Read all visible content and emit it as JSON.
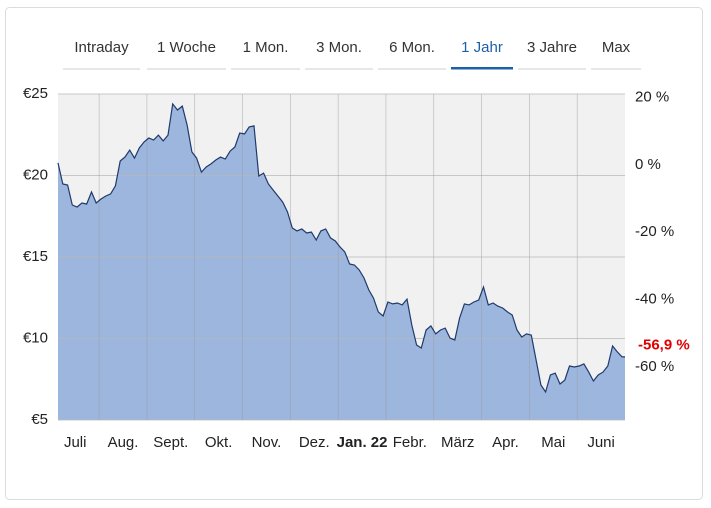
{
  "tabs": {
    "items": [
      "Intraday",
      "1 Woche",
      "1 Mon.",
      "3 Mon.",
      "6 Mon.",
      "1 Jahr",
      "3 Jahre",
      "Max"
    ],
    "active": 5
  },
  "chart_data": {
    "type": "area",
    "color": "#1f3a6b",
    "fill_color": "#9db6de",
    "grid": true,
    "xlim": [
      0.14,
      12.0
    ],
    "ylim": [
      5,
      25
    ],
    "y2lim": [
      -75.8,
      21.1
    ],
    "xgrid": [
      1,
      2,
      3,
      4,
      5,
      6,
      7,
      8,
      9,
      10,
      11
    ],
    "xticks": [
      {
        "value": 0.5,
        "label": "Juli"
      },
      {
        "value": 1.5,
        "label": "Aug."
      },
      {
        "value": 2.5,
        "label": "Sept."
      },
      {
        "value": 3.5,
        "label": "Okt."
      },
      {
        "value": 4.5,
        "label": "Nov."
      },
      {
        "value": 5.5,
        "label": "Dez."
      },
      {
        "value": 6.5,
        "label": "Jan. 22"
      },
      {
        "value": 7.5,
        "label": "Febr."
      },
      {
        "value": 8.5,
        "label": "März"
      },
      {
        "value": 9.5,
        "label": "Apr."
      },
      {
        "value": 10.5,
        "label": "Mai"
      },
      {
        "value": 11.5,
        "label": "Juni"
      }
    ],
    "emphasized_xtick": 6,
    "yticks": [
      {
        "value": 25,
        "label": "€25"
      },
      {
        "value": 20,
        "label": "€20"
      },
      {
        "value": 15,
        "label": "€15"
      },
      {
        "value": 10,
        "label": "€10"
      },
      {
        "value": 5,
        "label": "€5"
      }
    ],
    "y2ticks": [
      {
        "value": 20,
        "label": "20 %"
      },
      {
        "value": 0,
        "label": "0 %"
      },
      {
        "value": -20,
        "label": "-20 %"
      },
      {
        "value": -40,
        "label": "-40 %"
      },
      {
        "value": -60,
        "label": "-60 %"
      }
    ],
    "change": {
      "value": -56.9,
      "label": "-56,9 %",
      "color": "#e00000"
    },
    "x": [
      0.14,
      0.24,
      0.34,
      0.44,
      0.54,
      0.64,
      0.74,
      0.84,
      0.94,
      1.04,
      1.14,
      1.24,
      1.34,
      1.44,
      1.54,
      1.64,
      1.74,
      1.84,
      1.94,
      2.04,
      2.14,
      2.24,
      2.34,
      2.44,
      2.54,
      2.64,
      2.74,
      2.84,
      2.94,
      3.04,
      3.14,
      3.24,
      3.34,
      3.44,
      3.54,
      3.64,
      3.74,
      3.84,
      3.94,
      4.04,
      4.14,
      4.24,
      4.34,
      4.44,
      4.54,
      4.64,
      4.74,
      4.84,
      4.94,
      5.04,
      5.14,
      5.24,
      5.34,
      5.44,
      5.54,
      5.64,
      5.74,
      5.84,
      5.94,
      6.04,
      6.14,
      6.24,
      6.34,
      6.44,
      6.54,
      6.64,
      6.74,
      6.84,
      6.94,
      7.04,
      7.14,
      7.24,
      7.34,
      7.44,
      7.54,
      7.64,
      7.74,
      7.84,
      7.94,
      8.04,
      8.14,
      8.24,
      8.34,
      8.44,
      8.54,
      8.64,
      8.74,
      8.84,
      8.94,
      9.04,
      9.14,
      9.24,
      9.34,
      9.44,
      9.54,
      9.64,
      9.74,
      9.84,
      9.94,
      10.04,
      10.14,
      10.24,
      10.34,
      10.44,
      10.54,
      10.64,
      10.74,
      10.84,
      10.94,
      11.04,
      11.14,
      11.24,
      11.34,
      11.44,
      11.54,
      11.64,
      11.74,
      11.84,
      11.94,
      12.0
    ],
    "values": [
      20.77,
      19.48,
      19.42,
      18.19,
      18.07,
      18.31,
      18.25,
      18.99,
      18.31,
      18.56,
      18.74,
      18.87,
      19.36,
      20.89,
      21.13,
      21.56,
      21.07,
      21.69,
      22.06,
      22.3,
      22.18,
      22.48,
      22.12,
      22.48,
      24.39,
      24.02,
      24.26,
      23.1,
      21.44,
      21.07,
      20.21,
      20.52,
      20.71,
      20.95,
      21.13,
      21.01,
      21.5,
      21.75,
      22.61,
      22.55,
      22.98,
      23.04,
      19.97,
      20.15,
      19.48,
      19.11,
      18.74,
      18.37,
      17.76,
      16.78,
      16.6,
      16.72,
      16.47,
      16.53,
      16.04,
      16.6,
      16.72,
      16.17,
      15.98,
      15.61,
      15.31,
      14.57,
      14.51,
      14.2,
      13.71,
      12.98,
      12.48,
      11.63,
      11.38,
      12.24,
      12.12,
      12.18,
      12.06,
      12.42,
      10.83,
      9.6,
      9.42,
      10.52,
      10.77,
      10.28,
      10.52,
      10.64,
      10.03,
      9.91,
      11.26,
      12.12,
      12.06,
      12.24,
      12.36,
      13.16,
      12.06,
      12.18,
      11.99,
      11.87,
      11.63,
      11.44,
      10.52,
      10.09,
      10.28,
      10.21,
      8.68,
      7.15,
      6.72,
      7.76,
      7.88,
      7.21,
      7.45,
      8.31,
      8.25,
      8.31,
      8.44,
      7.94,
      7.39,
      7.76,
      7.94,
      8.31,
      9.54,
      9.17,
      8.87,
      8.87
    ]
  }
}
